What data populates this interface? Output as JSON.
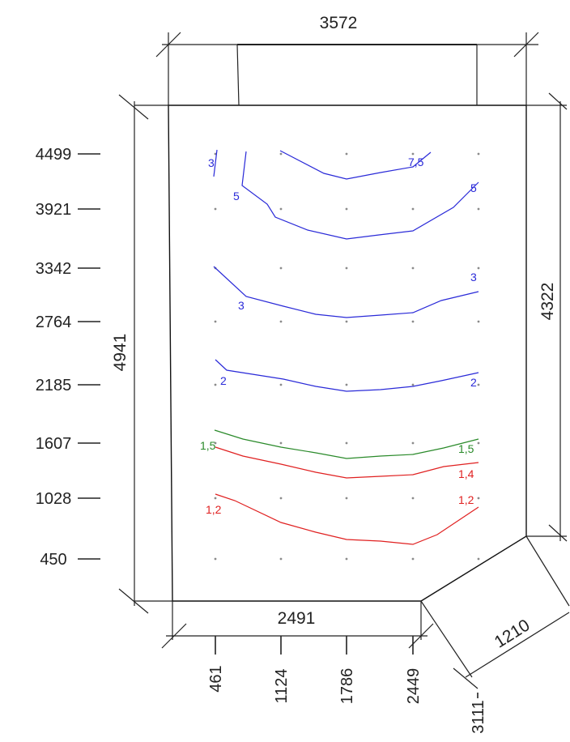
{
  "dimensions": {
    "top": "3572",
    "left": "4941",
    "right": "4322",
    "bottom": "2491",
    "diagonal": "1210"
  },
  "y_ticks": [
    "4499",
    "3921",
    "3342",
    "2764",
    "2185",
    "1607",
    "1028",
    "450"
  ],
  "x_ticks": [
    "461",
    "1124",
    "1786",
    "2449",
    "3111"
  ],
  "colors": {
    "blue": "#2a2ad8",
    "green": "#2a8a2a",
    "red": "#e02020"
  },
  "contours": [
    {
      "label_left": "3",
      "label_right": "",
      "color": "blue"
    },
    {
      "label_left": "",
      "label_right": "7,5",
      "color": "blue"
    },
    {
      "label_left": "5",
      "label_right": "5",
      "color": "blue"
    },
    {
      "label_left": "3",
      "label_right": "3",
      "color": "blue"
    },
    {
      "label_left": "2",
      "label_right": "2",
      "color": "blue"
    },
    {
      "label_left": "1,5",
      "label_right": "1,5",
      "color": "green"
    },
    {
      "label_left": "",
      "label_right": "1,4",
      "color": "red"
    },
    {
      "label_left": "1,2",
      "label_right": "1,2",
      "color": "red"
    }
  ]
}
